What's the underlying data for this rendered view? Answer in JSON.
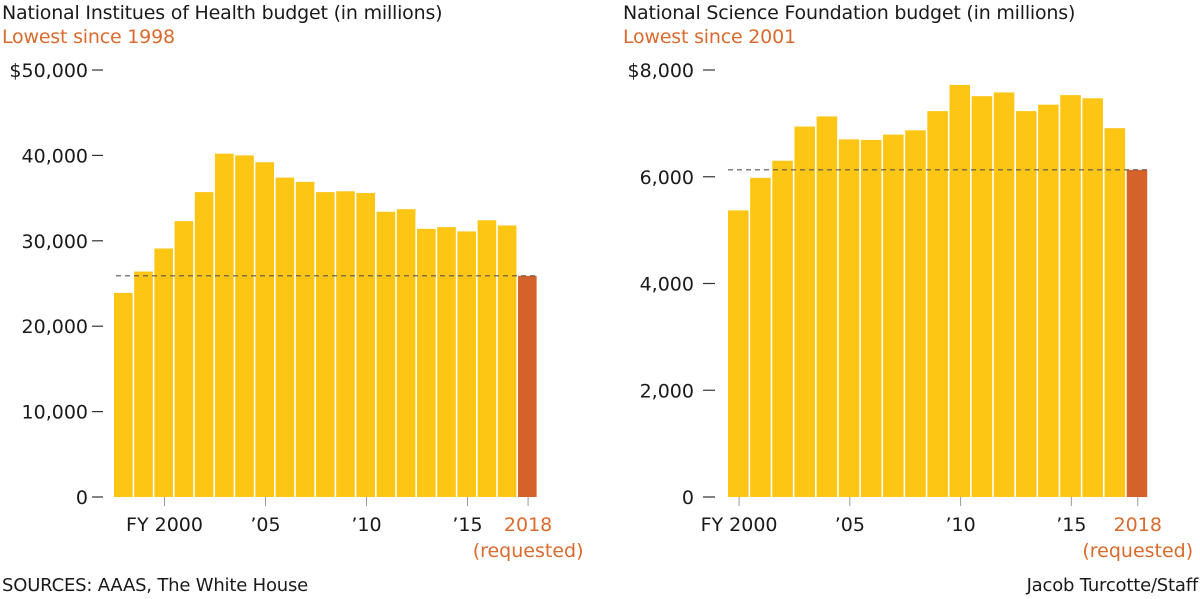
{
  "colors": {
    "bar": "#FDC514",
    "highlight": "#D4622A",
    "subtitle": "#DA6A2D",
    "text": "#1a1a1a",
    "axis": "#333333",
    "reference": "#555555"
  },
  "footer": {
    "source": "SOURCES: AAAS, The White House",
    "credit": "Jacob Turcotte/Staff"
  },
  "chart_data": [
    {
      "type": "bar",
      "title": "National Institues of Health budget (in millions)",
      "subtitle": "Lowest since 1998",
      "xlabel": "",
      "ylabel": "",
      "ylim": [
        0,
        50000
      ],
      "y_ticks": [
        0,
        10000,
        20000,
        30000,
        40000,
        50000
      ],
      "y_tick_labels": [
        "0",
        "10,000",
        "20,000",
        "30,000",
        "40,000",
        "$50,000"
      ],
      "x": [
        1998,
        1999,
        2000,
        2001,
        2002,
        2003,
        2004,
        2005,
        2006,
        2007,
        2008,
        2009,
        2010,
        2011,
        2012,
        2013,
        2014,
        2015,
        2016,
        2017,
        2018
      ],
      "values": [
        23900,
        26400,
        29100,
        32300,
        35700,
        40200,
        40000,
        39200,
        37400,
        36900,
        35700,
        35800,
        35600,
        33400,
        33700,
        31400,
        31600,
        31100,
        32400,
        31800,
        25900
      ],
      "highlighted": [
        2018
      ],
      "x_ticks": [
        {
          "year": 2000,
          "label": "FY 2000",
          "highlight": false
        },
        {
          "year": 2005,
          "label": "’05",
          "highlight": false
        },
        {
          "year": 2010,
          "label": "’10",
          "highlight": false
        },
        {
          "year": 2015,
          "label": "’15",
          "highlight": false
        },
        {
          "year": 2018,
          "label": "2018",
          "sublabel": "(requested)",
          "highlight": true
        }
      ],
      "reference_line": {
        "value": 25900,
        "style": "dashed"
      },
      "grid": false,
      "legend": "none"
    },
    {
      "type": "bar",
      "title": "National Science Foundation budget (in millions)",
      "subtitle": "Lowest since 2001",
      "xlabel": "",
      "ylabel": "",
      "ylim": [
        0,
        8000
      ],
      "y_ticks": [
        0,
        2000,
        4000,
        6000,
        8000
      ],
      "y_tick_labels": [
        "0",
        "2,000",
        "4,000",
        "6,000",
        "$8,000"
      ],
      "x": [
        2000,
        2001,
        2002,
        2003,
        2004,
        2005,
        2006,
        2007,
        2008,
        2009,
        2010,
        2011,
        2012,
        2013,
        2014,
        2015,
        2016,
        2017,
        2018
      ],
      "values": [
        5370,
        5980,
        6300,
        6940,
        7130,
        6700,
        6690,
        6790,
        6870,
        7230,
        7720,
        7510,
        7580,
        7230,
        7350,
        7530,
        7470,
        6910,
        6130
      ],
      "highlighted": [
        2018
      ],
      "x_ticks": [
        {
          "year": 2000,
          "label": "FY 2000",
          "highlight": false
        },
        {
          "year": 2005,
          "label": "’05",
          "highlight": false
        },
        {
          "year": 2010,
          "label": "’10",
          "highlight": false
        },
        {
          "year": 2015,
          "label": "’15",
          "highlight": false
        },
        {
          "year": 2018,
          "label": "2018",
          "sublabel": "(requested)",
          "highlight": true
        }
      ],
      "reference_line": {
        "value": 6130,
        "style": "dashed"
      },
      "grid": false,
      "legend": "none"
    }
  ]
}
